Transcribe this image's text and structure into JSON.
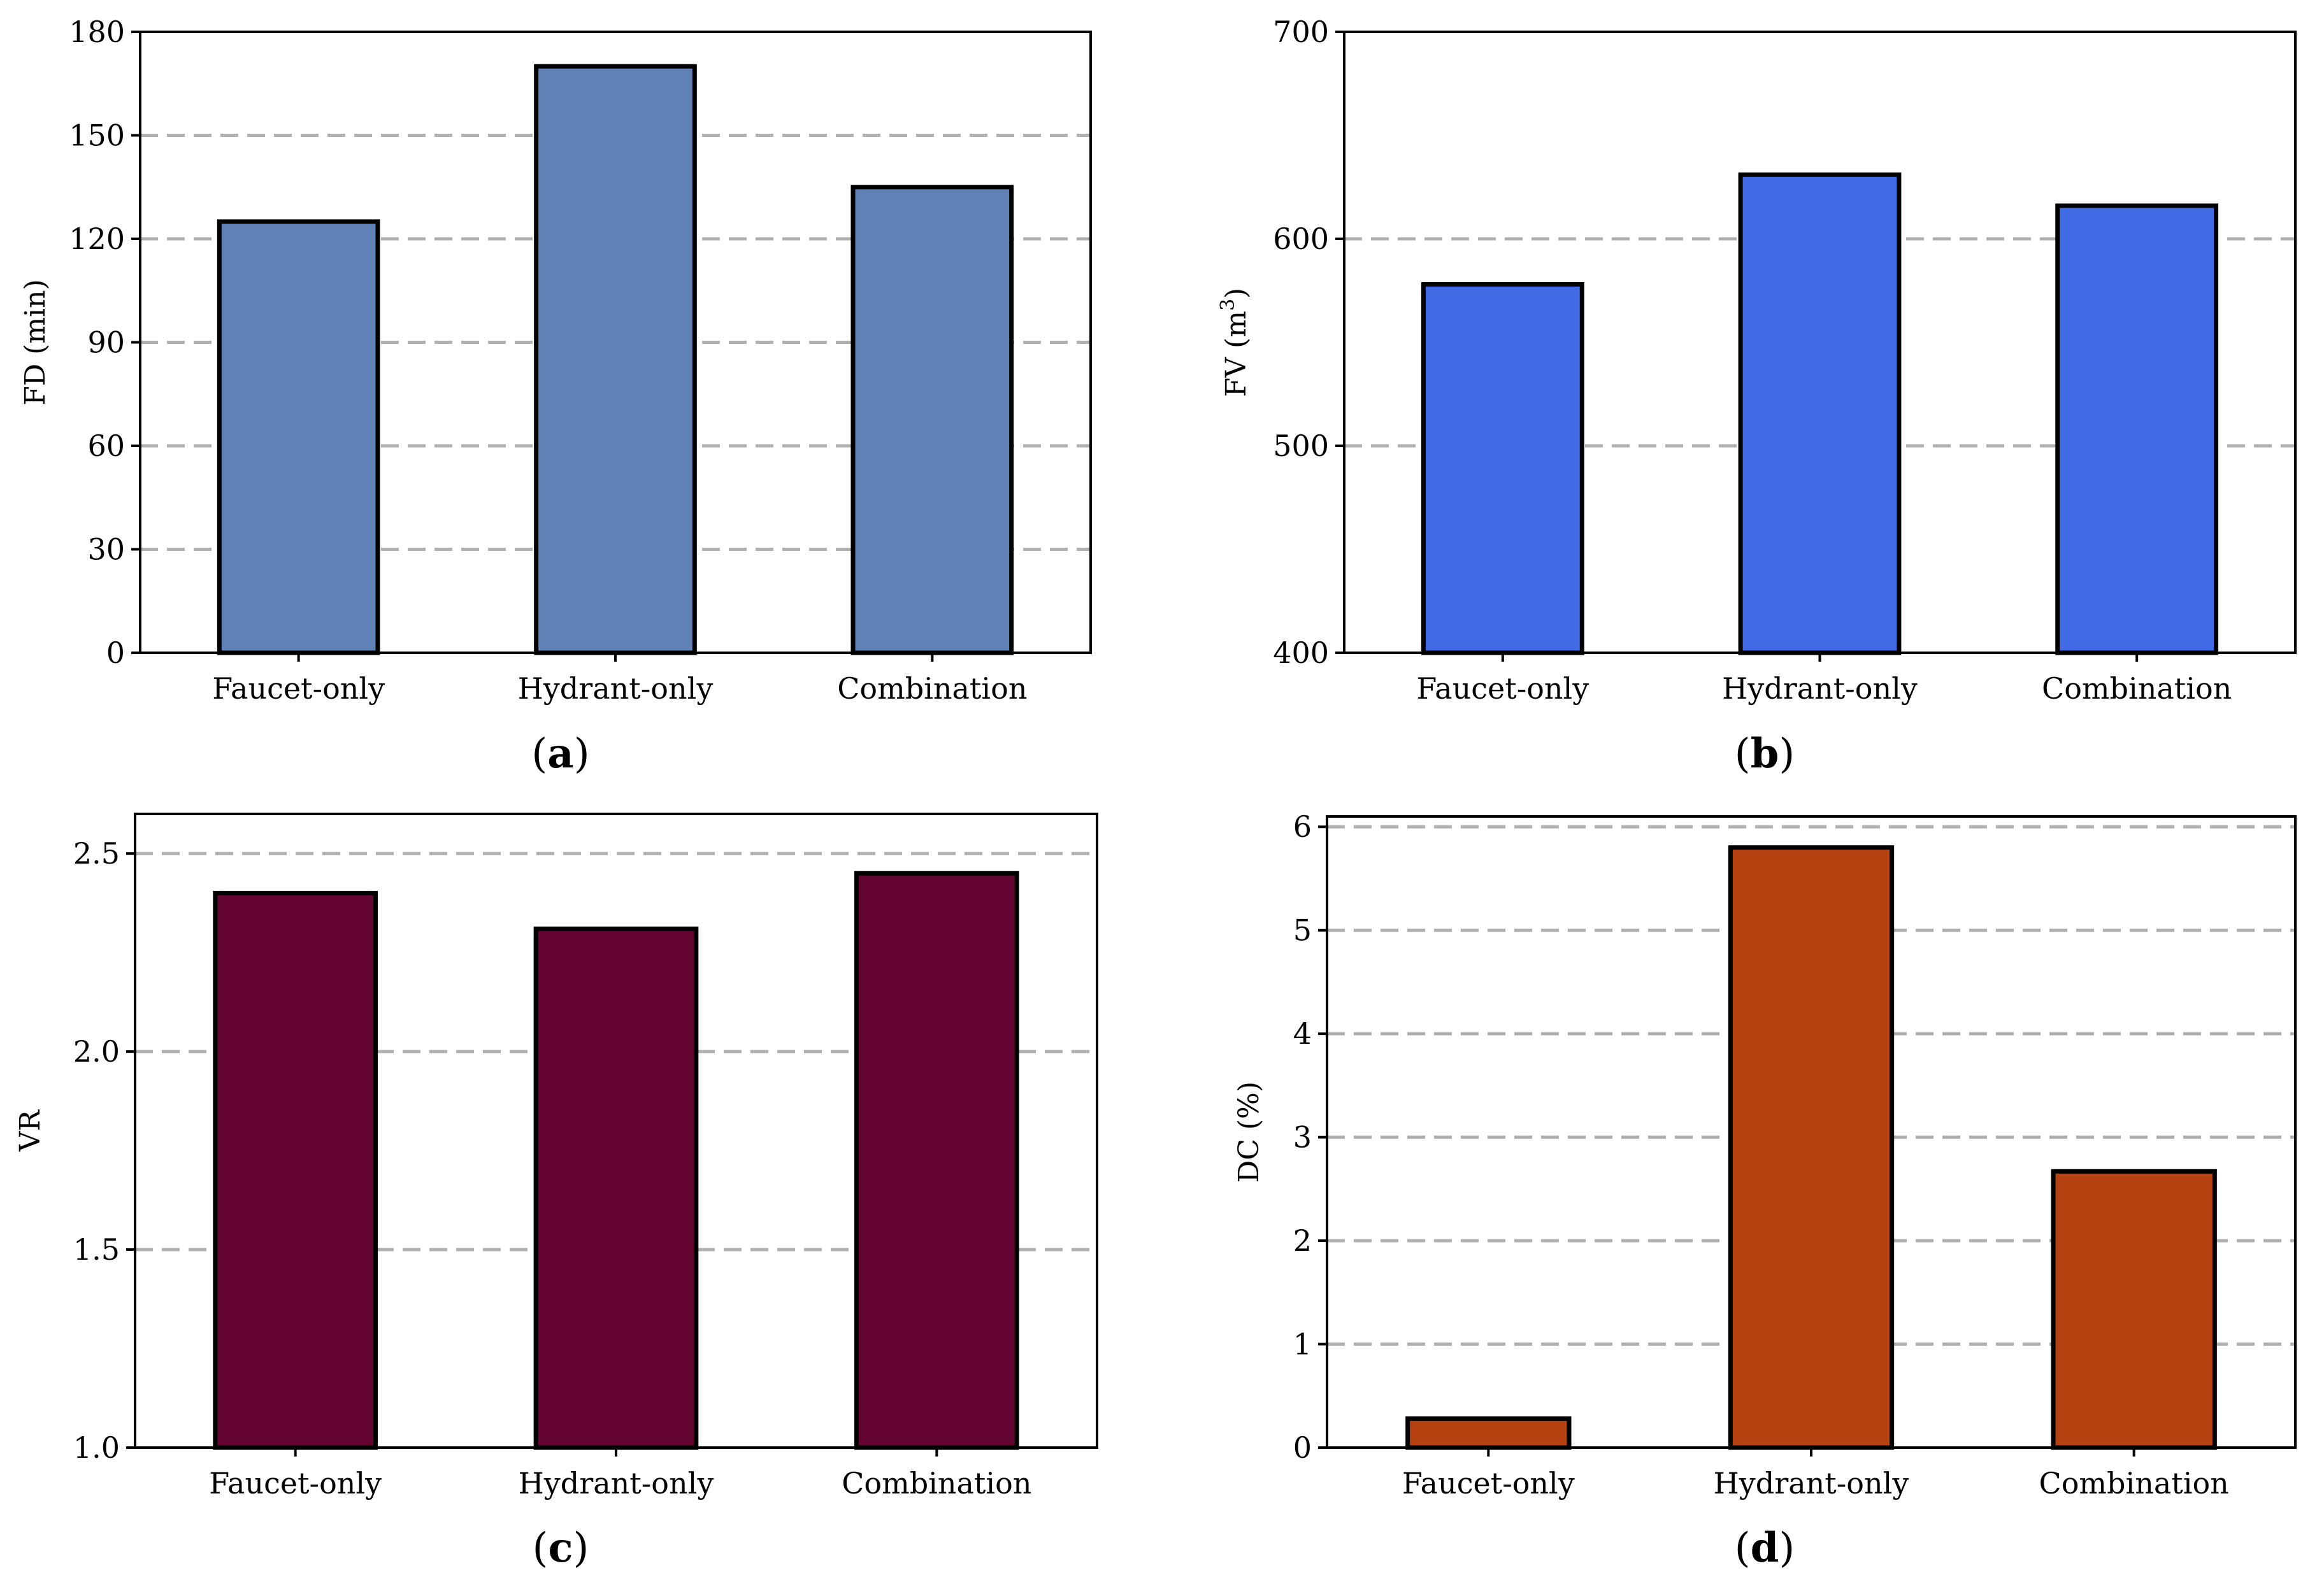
{
  "chart_data": [
    {
      "type": "bar",
      "panel": "a",
      "caption": "a",
      "categories": [
        "Faucet-only",
        "Hydrant-only",
        "Combination"
      ],
      "values": [
        125,
        170,
        135
      ],
      "ylabel": "FD (min)",
      "ylim": [
        0,
        180
      ],
      "yticks": [
        0,
        30,
        60,
        90,
        120,
        150,
        180
      ],
      "ytick_labels": [
        "0",
        "30",
        "60",
        "90",
        "120",
        "150",
        "180"
      ],
      "gridlines": [
        30,
        60,
        90,
        120,
        150
      ],
      "color": "#6182b7"
    },
    {
      "type": "bar",
      "panel": "b",
      "caption": "b",
      "categories": [
        "Faucet-only",
        "Hydrant-only",
        "Combination"
      ],
      "values": [
        578,
        631,
        616
      ],
      "ylabel": "FV (m",
      "ylabel_sup": "3",
      "ylabel_close": ")",
      "ylim": [
        400,
        700
      ],
      "yticks": [
        400,
        500,
        600,
        700
      ],
      "ytick_labels": [
        "400",
        "500",
        "600",
        "700"
      ],
      "gridlines": [
        500,
        600
      ],
      "color": "#416be4"
    },
    {
      "type": "bar",
      "panel": "c",
      "caption": "c",
      "categories": [
        "Faucet-only",
        "Hydrant-only",
        "Combination"
      ],
      "values": [
        2.4,
        2.31,
        2.45
      ],
      "ylabel": "VR",
      "ylim": [
        1.0,
        2.6
      ],
      "yticks": [
        1.0,
        1.5,
        2.0,
        2.5
      ],
      "ytick_labels": [
        "1.0",
        "1.5",
        "2.0",
        "2.5"
      ],
      "gridlines": [
        1.5,
        2.0,
        2.5
      ],
      "color": "#630431"
    },
    {
      "type": "bar",
      "panel": "d",
      "caption": "d",
      "categories": [
        "Faucet-only",
        "Hydrant-only",
        "Combination"
      ],
      "values": [
        0.28,
        5.8,
        2.67
      ],
      "ylabel": "DC (%)",
      "ylim": [
        0,
        6.1
      ],
      "yticks": [
        0,
        1,
        2,
        3,
        4,
        5,
        6
      ],
      "ytick_labels": [
        "0",
        "1",
        "2",
        "3",
        "4",
        "5",
        "6"
      ],
      "gridlines": [
        1,
        2,
        3,
        4,
        5,
        6
      ],
      "color": "#b64211"
    }
  ]
}
